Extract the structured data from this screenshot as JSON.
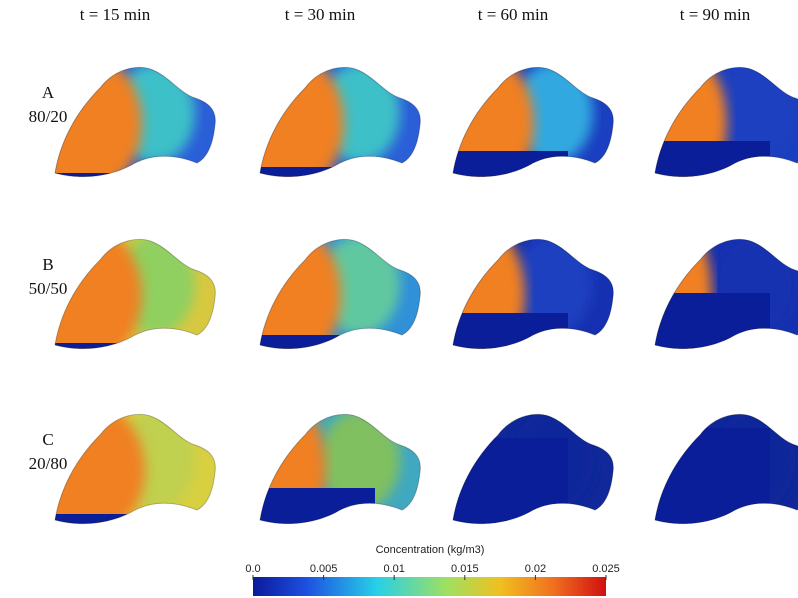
{
  "columns": [
    "t = 15 min",
    "t = 30 min",
    "t = 60 min",
    "t = 90 min"
  ],
  "rows": [
    {
      "letter": "A",
      "ratio": "80/20"
    },
    {
      "letter": "B",
      "ratio": "50/50"
    },
    {
      "letter": "C",
      "ratio": "20/80"
    }
  ],
  "colorbar": {
    "title": "Concentration (kg/m3)",
    "lim": [
      0,
      0.025
    ],
    "ticks": [
      {
        "value": 0,
        "label": "0.0"
      },
      0.005,
      0.01,
      0.015,
      0.02,
      0.025
    ]
  }
}
